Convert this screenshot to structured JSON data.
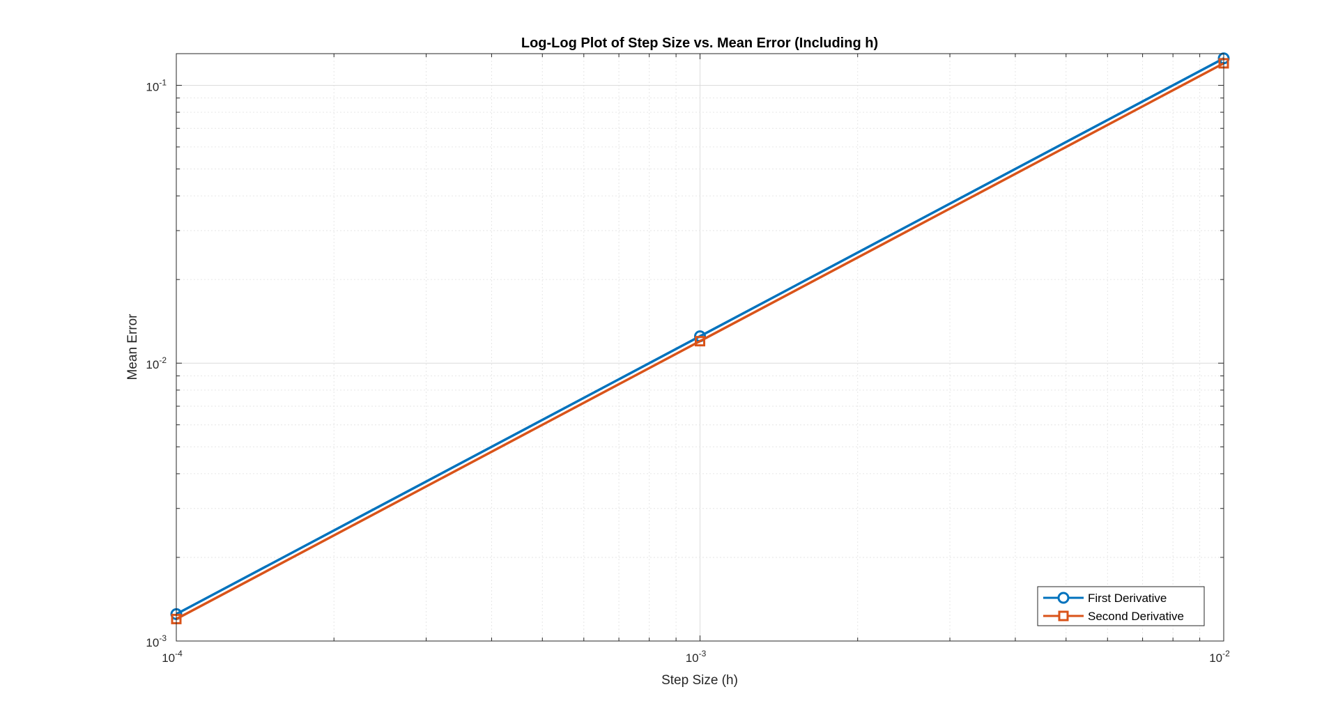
{
  "chart_data": {
    "type": "line",
    "title": "Log-Log Plot of Step Size vs. Mean Error (Including h)",
    "xlabel": "Step Size (h)",
    "ylabel": "Mean Error",
    "xscale": "log",
    "yscale": "log",
    "xlim": [
      0.0001,
      0.01
    ],
    "ylim": [
      0.001,
      0.13
    ],
    "grid": true,
    "minor_grid": true,
    "legend_location": "bottom-right",
    "x_ticks": [
      {
        "base": "10",
        "exp": "-4"
      },
      {
        "base": "10",
        "exp": "-3"
      },
      {
        "base": "10",
        "exp": "-2"
      }
    ],
    "y_ticks": [
      {
        "base": "10",
        "exp": "-3"
      },
      {
        "base": "10",
        "exp": "-2"
      },
      {
        "base": "10",
        "exp": "-1"
      }
    ],
    "x": [
      0.0001,
      0.001,
      0.01
    ],
    "series": [
      {
        "name": "First Derivative",
        "values": [
          0.00125,
          0.0125,
          0.125
        ],
        "color": "#0072BD",
        "marker": "circle"
      },
      {
        "name": "Second Derivative",
        "values": [
          0.0012,
          0.012,
          0.12
        ],
        "color": "#D95319",
        "marker": "square"
      }
    ]
  }
}
